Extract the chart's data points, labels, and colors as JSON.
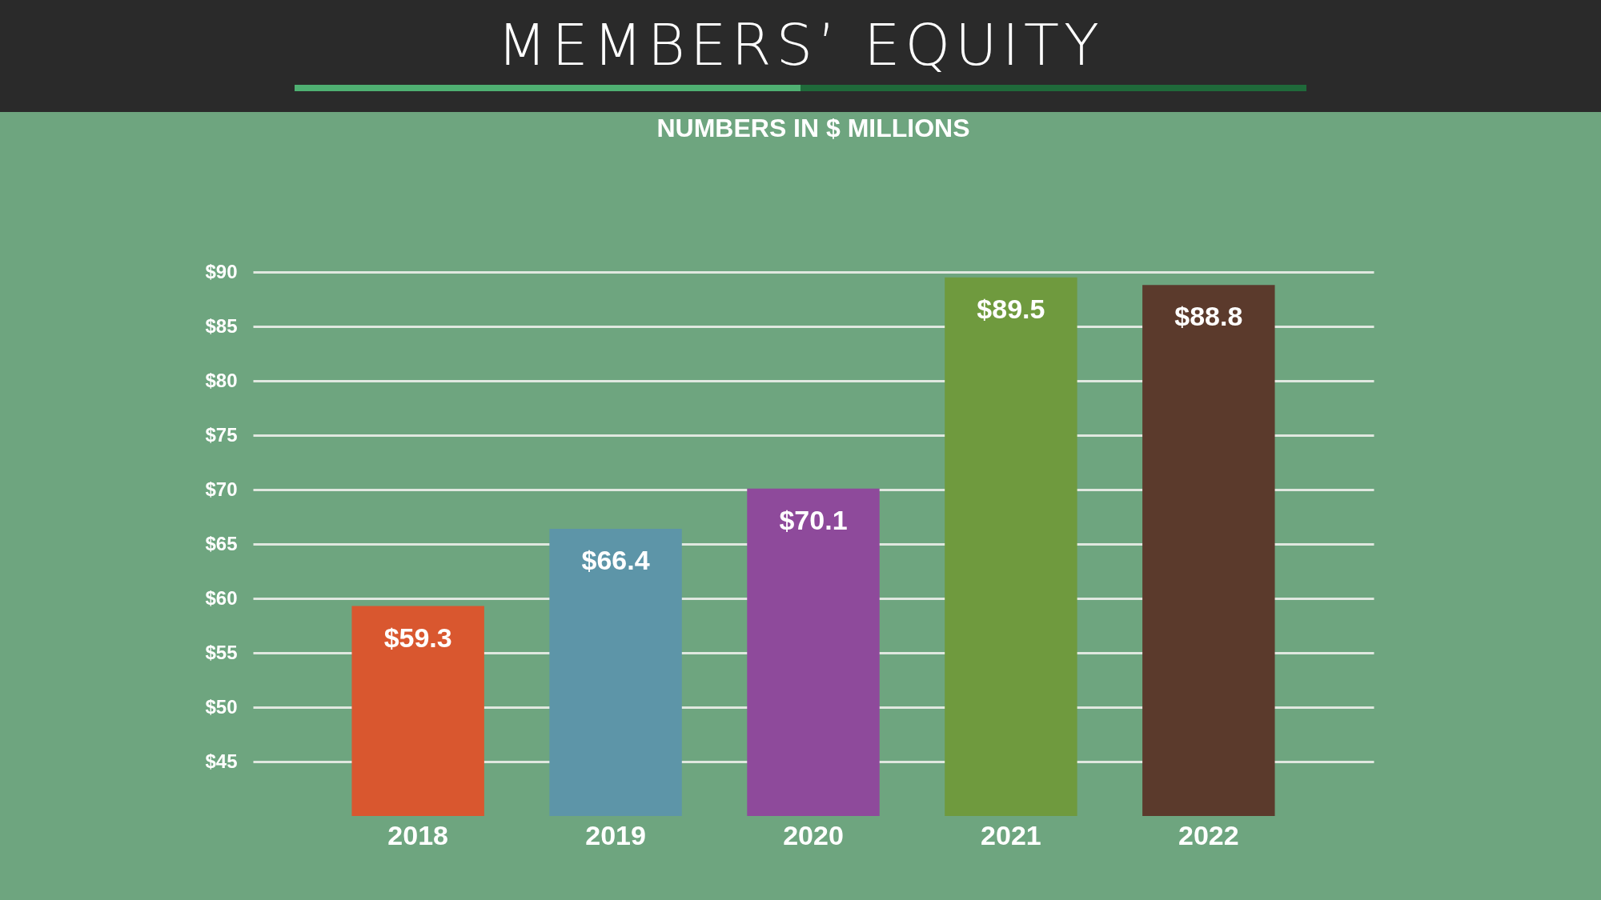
{
  "chart_data": {
    "type": "bar",
    "title": "MEMBERS’ EQUITY",
    "subtitle": "NUMBERS IN $ MILLIONS",
    "categories": [
      "2018",
      "2019",
      "2020",
      "2021",
      "2022"
    ],
    "values": [
      59.3,
      66.4,
      70.1,
      89.5,
      88.8
    ],
    "colors": [
      "#d9572f",
      "#5d95a8",
      "#8e4a9b",
      "#6f9a3e",
      "#5b3a2c"
    ],
    "value_labels": [
      "$59.3",
      "$66.4",
      "$70.1",
      "$89.5",
      "$88.8"
    ],
    "ylim": [
      40,
      90
    ],
    "yticks": [
      {
        "value": 45,
        "label": "$45"
      },
      {
        "value": 50,
        "label": "$50"
      },
      {
        "value": 55,
        "label": "$55"
      },
      {
        "value": 60,
        "label": "$60"
      },
      {
        "value": 65,
        "label": "$65"
      },
      {
        "value": 70,
        "label": "$70"
      },
      {
        "value": 75,
        "label": "$75"
      },
      {
        "value": 80,
        "label": "$80"
      },
      {
        "value": 85,
        "label": "$85"
      },
      {
        "value": 90,
        "label": "$90"
      }
    ],
    "grid": "y"
  }
}
